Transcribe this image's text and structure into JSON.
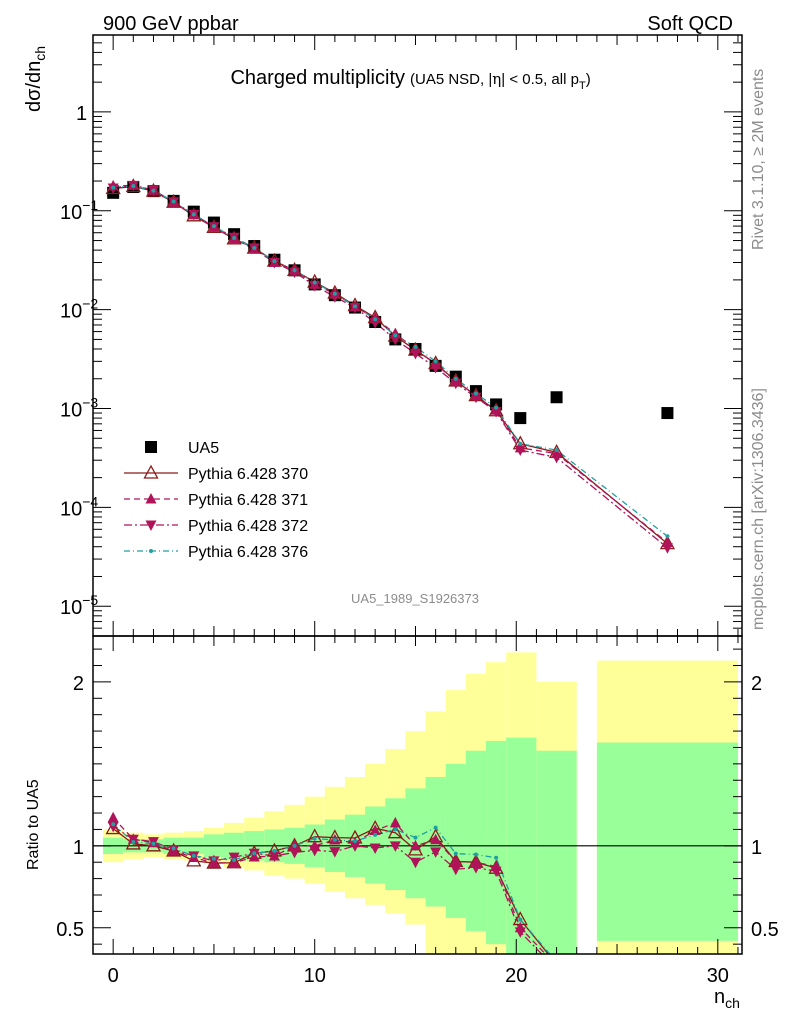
{
  "header": {
    "energy_label": "900 GeV ppbar",
    "category_label": "Soft QCD"
  },
  "side_labels": {
    "rivet": "Rivet 3.1.10, ≥ 2M events",
    "source": "mcplots.cern.ch [arXiv:1306.3436]"
  },
  "chart_data": [
    {
      "type": "scatter",
      "title": "Charged multiplicity",
      "subtitle_parts": {
        "open": "(UA5 NSD, |",
        "eta": "η",
        "mid": "| < 0.5, all p",
        "sub": "T",
        "close": ")"
      },
      "ylabel_parts": {
        "main": "dσ/dn",
        "sub": "ch"
      },
      "analysis_id": "UA5_1989_S1926373",
      "xlim": [
        -1,
        31.2
      ],
      "ylim": [
        5e-06,
        6
      ],
      "yscale": "log",
      "y_ticks": [
        {
          "value": 1e-05,
          "base": "10",
          "exp": "−5"
        },
        {
          "value": 0.0001,
          "base": "10",
          "exp": "−4"
        },
        {
          "value": 0.001,
          "base": "10",
          "exp": "−3"
        },
        {
          "value": 0.01,
          "base": "10",
          "exp": "−2"
        },
        {
          "value": 0.1,
          "base": "10",
          "exp": "−1"
        },
        {
          "value": 1,
          "base": "1",
          "exp": ""
        }
      ],
      "legend_position": "bottom-left",
      "series": [
        {
          "name": "UA5",
          "style": "data",
          "color": "#000000",
          "x": [
            0,
            1,
            2,
            3,
            4,
            5,
            6,
            7,
            8,
            9,
            10,
            11,
            12,
            13,
            14,
            15,
            16,
            17,
            18,
            19,
            20.2,
            22,
            27.5
          ],
          "y": [
            0.152,
            0.174,
            0.158,
            0.126,
            0.098,
            0.076,
            0.058,
            0.044,
            0.032,
            0.025,
            0.018,
            0.014,
            0.0105,
            0.0075,
            0.005,
            0.004,
            0.0027,
            0.0021,
            0.0015,
            0.0011,
            0.0008,
            0.0013,
            0.0009
          ]
        },
        {
          "name": "Pythia 6.428 370",
          "style": "open-triangle-solid",
          "color": "#8b1a1a",
          "x": [
            0,
            1,
            2,
            3,
            4,
            5,
            6,
            7,
            8,
            9,
            10,
            11,
            12,
            13,
            14,
            15,
            16,
            17,
            18,
            19,
            20.2,
            22,
            27.5
          ],
          "y": [
            0.168,
            0.176,
            0.158,
            0.122,
            0.089,
            0.068,
            0.052,
            0.042,
            0.031,
            0.025,
            0.019,
            0.0147,
            0.011,
            0.0083,
            0.0054,
            0.0039,
            0.00285,
            0.0019,
            0.00135,
            0.00095,
            0.00044,
            0.00036,
            4.3e-05
          ]
        },
        {
          "name": "Pythia 6.428 371",
          "style": "triangle-up-dashed",
          "color": "#b0135a",
          "x": [
            0,
            1,
            2,
            3,
            4,
            5,
            6,
            7,
            8,
            9,
            10,
            11,
            12,
            13,
            14,
            15,
            16,
            17,
            18,
            19,
            20.2,
            22,
            27.5
          ],
          "y": [
            0.178,
            0.181,
            0.161,
            0.122,
            0.091,
            0.068,
            0.052,
            0.041,
            0.03,
            0.025,
            0.018,
            0.0145,
            0.0107,
            0.0082,
            0.0057,
            0.004,
            0.0028,
            0.0019,
            0.00135,
            0.00096,
            0.0004,
            0.00035,
            4.4e-05
          ]
        },
        {
          "name": "Pythia 6.428 372",
          "style": "triangle-down-dashdot",
          "color": "#b0135a",
          "x": [
            0,
            1,
            2,
            3,
            4,
            5,
            6,
            7,
            8,
            9,
            10,
            11,
            12,
            13,
            14,
            15,
            16,
            17,
            18,
            19,
            20.2,
            22,
            27.5
          ],
          "y": [
            0.17,
            0.181,
            0.162,
            0.123,
            0.092,
            0.069,
            0.054,
            0.042,
            0.03,
            0.024,
            0.0175,
            0.0135,
            0.0105,
            0.0074,
            0.005,
            0.0036,
            0.0026,
            0.0018,
            0.0013,
            0.00093,
            0.00038,
            0.00032,
            3.9e-05
          ]
        },
        {
          "name": "Pythia 6.428 376",
          "style": "dot-dashdot",
          "color": "#20a0a0",
          "x": [
            0,
            1,
            2,
            3,
            4,
            5,
            6,
            7,
            8,
            9,
            10,
            11,
            12,
            13,
            14,
            15,
            16,
            17,
            18,
            19,
            20.2,
            22,
            27.5
          ],
          "y": [
            0.172,
            0.178,
            0.16,
            0.124,
            0.092,
            0.07,
            0.053,
            0.042,
            0.031,
            0.025,
            0.0188,
            0.0145,
            0.0108,
            0.008,
            0.0055,
            0.0042,
            0.003,
            0.002,
            0.00142,
            0.00102,
            0.00044,
            0.00038,
            5.1e-05
          ]
        }
      ]
    },
    {
      "type": "scatter",
      "ylabel": "Ratio to UA5",
      "xlabel_parts": {
        "main": "n",
        "sub": "ch"
      },
      "xlim": [
        -1,
        31.2
      ],
      "ylim": [
        0.34,
        2.28
      ],
      "y_ticks": [
        0.5,
        1,
        2
      ],
      "y_tick_labels": [
        "0.5",
        "1",
        "2"
      ],
      "x_ticks": [
        0,
        10,
        20,
        30
      ],
      "x_tick_labels": [
        "0",
        "10",
        "20",
        "30"
      ],
      "reference_line": 1,
      "bands": {
        "bin_edges": [
          [
            -0.5,
            0.5
          ],
          [
            0.5,
            1.5
          ],
          [
            1.5,
            2.5
          ],
          [
            2.5,
            3.5
          ],
          [
            3.5,
            4.5
          ],
          [
            4.5,
            5.5
          ],
          [
            5.5,
            6.5
          ],
          [
            6.5,
            7.5
          ],
          [
            7.5,
            8.5
          ],
          [
            8.5,
            9.5
          ],
          [
            9.5,
            10.5
          ],
          [
            10.5,
            11.5
          ],
          [
            11.5,
            12.5
          ],
          [
            12.5,
            13.5
          ],
          [
            13.5,
            14.5
          ],
          [
            14.5,
            15.5
          ],
          [
            15.5,
            16.5
          ],
          [
            16.5,
            17.5
          ],
          [
            17.5,
            18.5
          ],
          [
            18.5,
            19.5
          ],
          [
            19.5,
            21
          ],
          [
            21,
            23
          ],
          [
            24,
            31
          ]
        ],
        "stat_low": [
          0.95,
          0.96,
          0.96,
          0.95,
          0.95,
          0.93,
          0.92,
          0.91,
          0.9,
          0.89,
          0.87,
          0.84,
          0.81,
          0.77,
          0.73,
          0.68,
          0.63,
          0.56,
          0.48,
          0.4,
          0.34,
          0.34,
          0.42
        ],
        "stat_high": [
          1.05,
          1.04,
          1.04,
          1.05,
          1.05,
          1.07,
          1.08,
          1.09,
          1.1,
          1.11,
          1.13,
          1.16,
          1.19,
          1.24,
          1.29,
          1.35,
          1.42,
          1.5,
          1.58,
          1.64,
          1.66,
          1.58,
          1.63
        ],
        "total_low": [
          0.9,
          0.92,
          0.93,
          0.92,
          0.91,
          0.89,
          0.87,
          0.85,
          0.82,
          0.8,
          0.77,
          0.72,
          0.68,
          0.64,
          0.59,
          0.52,
          0.34,
          0.34,
          0.34,
          0.34,
          0.34,
          0.34,
          0.34
        ],
        "total_high": [
          1.1,
          1.08,
          1.07,
          1.08,
          1.09,
          1.11,
          1.14,
          1.17,
          1.21,
          1.25,
          1.3,
          1.36,
          1.42,
          1.5,
          1.59,
          1.7,
          1.82,
          1.95,
          2.05,
          2.12,
          2.18,
          2.0,
          2.13
        ]
      }
    }
  ],
  "colors": {
    "stat_band": "#99ff99",
    "total_band": "#ffff99"
  }
}
